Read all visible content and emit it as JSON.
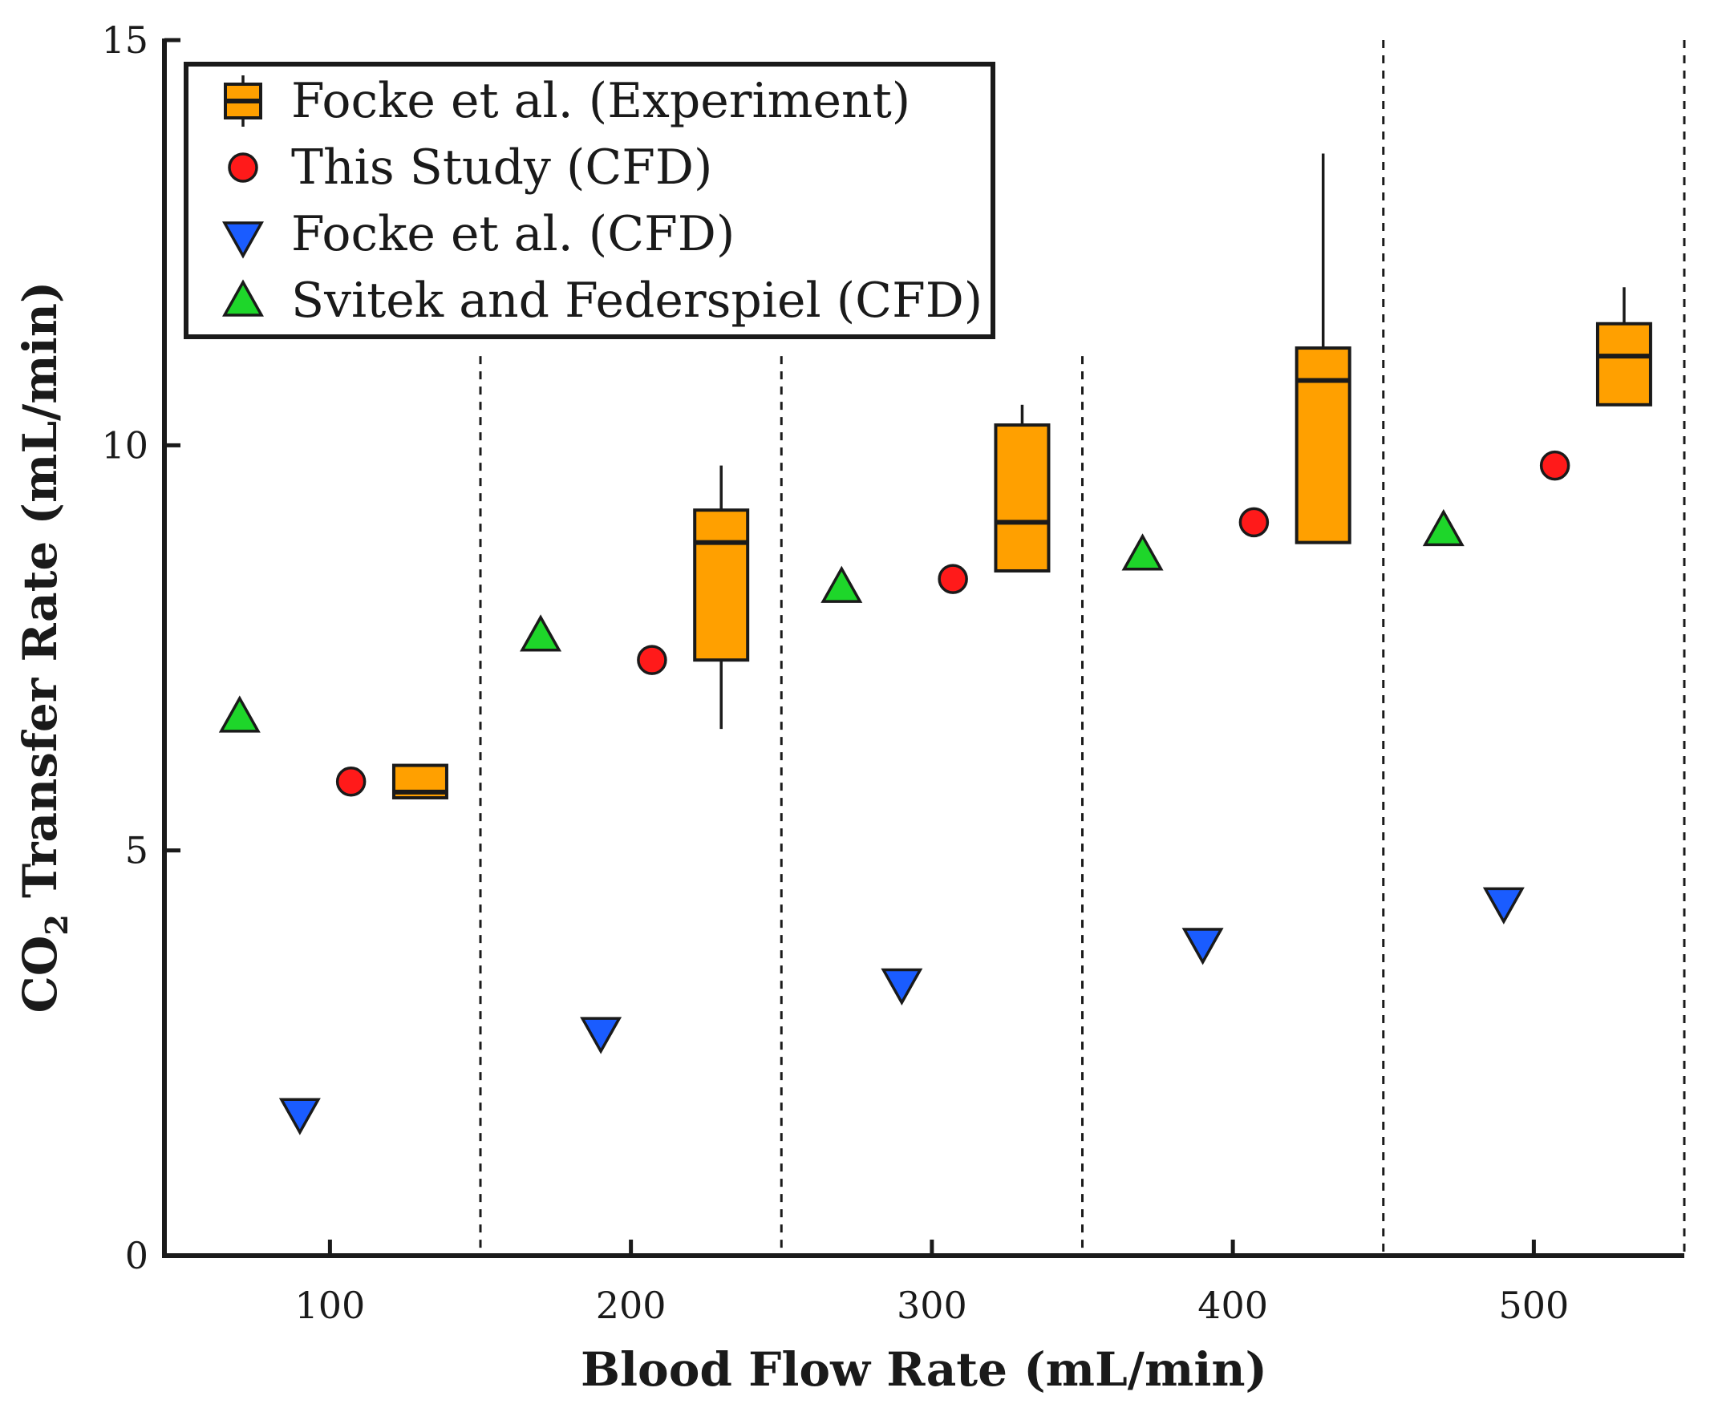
{
  "chart_data": {
    "type": "scatter",
    "title": "",
    "xlabel": "Blood Flow Rate (mL/min)",
    "ylabel": {
      "prefix": "CO",
      "subscript": "2",
      "suffix": " Transfer Rate (mL/min)"
    },
    "xlim": [
      45,
      550
    ],
    "ylim": [
      0,
      15
    ],
    "xticks": [
      100,
      200,
      300,
      400,
      500
    ],
    "yticks": [
      0,
      5,
      10,
      15
    ],
    "group_separators": [
      150,
      250,
      350,
      450,
      550
    ],
    "grid": false,
    "legend_position": "top-left",
    "colors": {
      "box_fill": "#ffa000",
      "this_study": "#ff1a1a",
      "focke_cfd": "#1a5cff",
      "svitek": "#1ed62a",
      "edge": "#1a1a1a"
    },
    "series": [
      {
        "name": "Focke et al. (Experiment)",
        "kind": "box",
        "boxes": [
          {
            "x": 130,
            "q1": 5.65,
            "median": 5.72,
            "q3": 6.05,
            "whisker_low": 5.65,
            "whisker_high": 6.05
          },
          {
            "x": 230,
            "q1": 7.35,
            "median": 8.8,
            "q3": 9.2,
            "whisker_low": 6.5,
            "whisker_high": 9.75
          },
          {
            "x": 330,
            "q1": 8.45,
            "median": 9.05,
            "q3": 10.25,
            "whisker_low": 8.45,
            "whisker_high": 10.5
          },
          {
            "x": 430,
            "q1": 8.8,
            "median": 10.8,
            "q3": 11.2,
            "whisker_low": 8.8,
            "whisker_high": 13.6
          },
          {
            "x": 530,
            "q1": 10.5,
            "median": 11.1,
            "q3": 11.5,
            "whisker_low": 10.5,
            "whisker_high": 11.95
          }
        ]
      },
      {
        "name": "This Study (CFD)",
        "marker": "circle",
        "x": [
          107,
          207,
          307,
          407,
          507
        ],
        "y": [
          5.85,
          7.35,
          8.35,
          9.05,
          9.75
        ]
      },
      {
        "name": "Focke et al. (CFD)",
        "marker": "triangle-down",
        "x": [
          90,
          190,
          290,
          390,
          490
        ],
        "y": [
          1.75,
          2.75,
          3.35,
          3.85,
          4.35
        ]
      },
      {
        "name": "Svitek and Federspiel (CFD)",
        "marker": "triangle-up",
        "x": [
          70,
          170,
          270,
          370,
          470
        ],
        "y": [
          6.65,
          7.65,
          8.25,
          8.65,
          8.95
        ]
      }
    ]
  }
}
